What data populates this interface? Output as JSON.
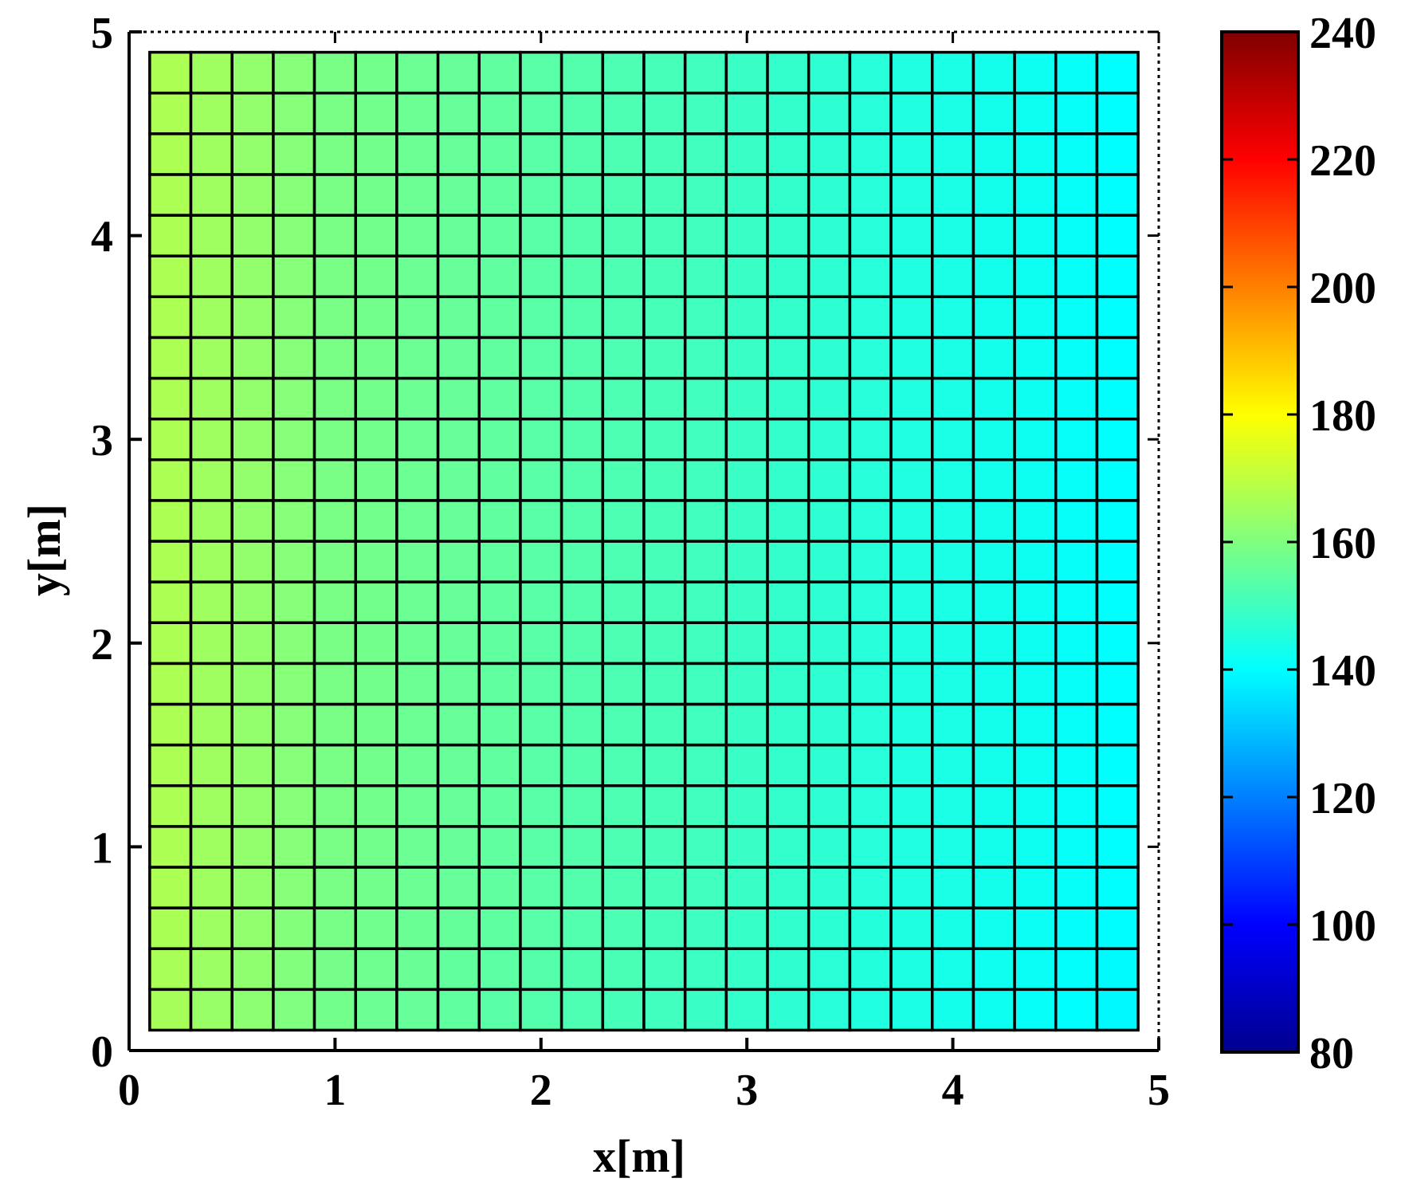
{
  "chart_data": {
    "type": "heatmap",
    "title": "",
    "xlabel": "x[m]",
    "ylabel": "y[m]",
    "xlim": [
      0,
      5
    ],
    "ylim": [
      0,
      5
    ],
    "x_ticks": [
      "0",
      "1",
      "2",
      "3",
      "4",
      "5"
    ],
    "y_ticks": [
      "0",
      "1",
      "2",
      "3",
      "4",
      "5"
    ],
    "grid": false,
    "cells": {
      "nx": 24,
      "ny": 24,
      "x_start": 0.1,
      "x_end": 4.9,
      "y_start": 0.1,
      "y_end": 4.9,
      "column_values": [
        167,
        165,
        163,
        161,
        159,
        158,
        157,
        156,
        155,
        154,
        153,
        152,
        151,
        150,
        149,
        148,
        147,
        146,
        145,
        144,
        143,
        142,
        141,
        140
      ],
      "row_adjust": [
        -1.0,
        -0.6,
        -0.3,
        0,
        0,
        0,
        0,
        0,
        0,
        0,
        0,
        0,
        0,
        0,
        0,
        0,
        0,
        0,
        0,
        0,
        0,
        0,
        0,
        0
      ],
      "note_row_order": "bottom-to-top"
    },
    "colorbar": {
      "colormap": "jet",
      "range": [
        80,
        240
      ],
      "ticks": [
        "80",
        "100",
        "120",
        "140",
        "160",
        "180",
        "200",
        "220",
        "240"
      ]
    }
  }
}
